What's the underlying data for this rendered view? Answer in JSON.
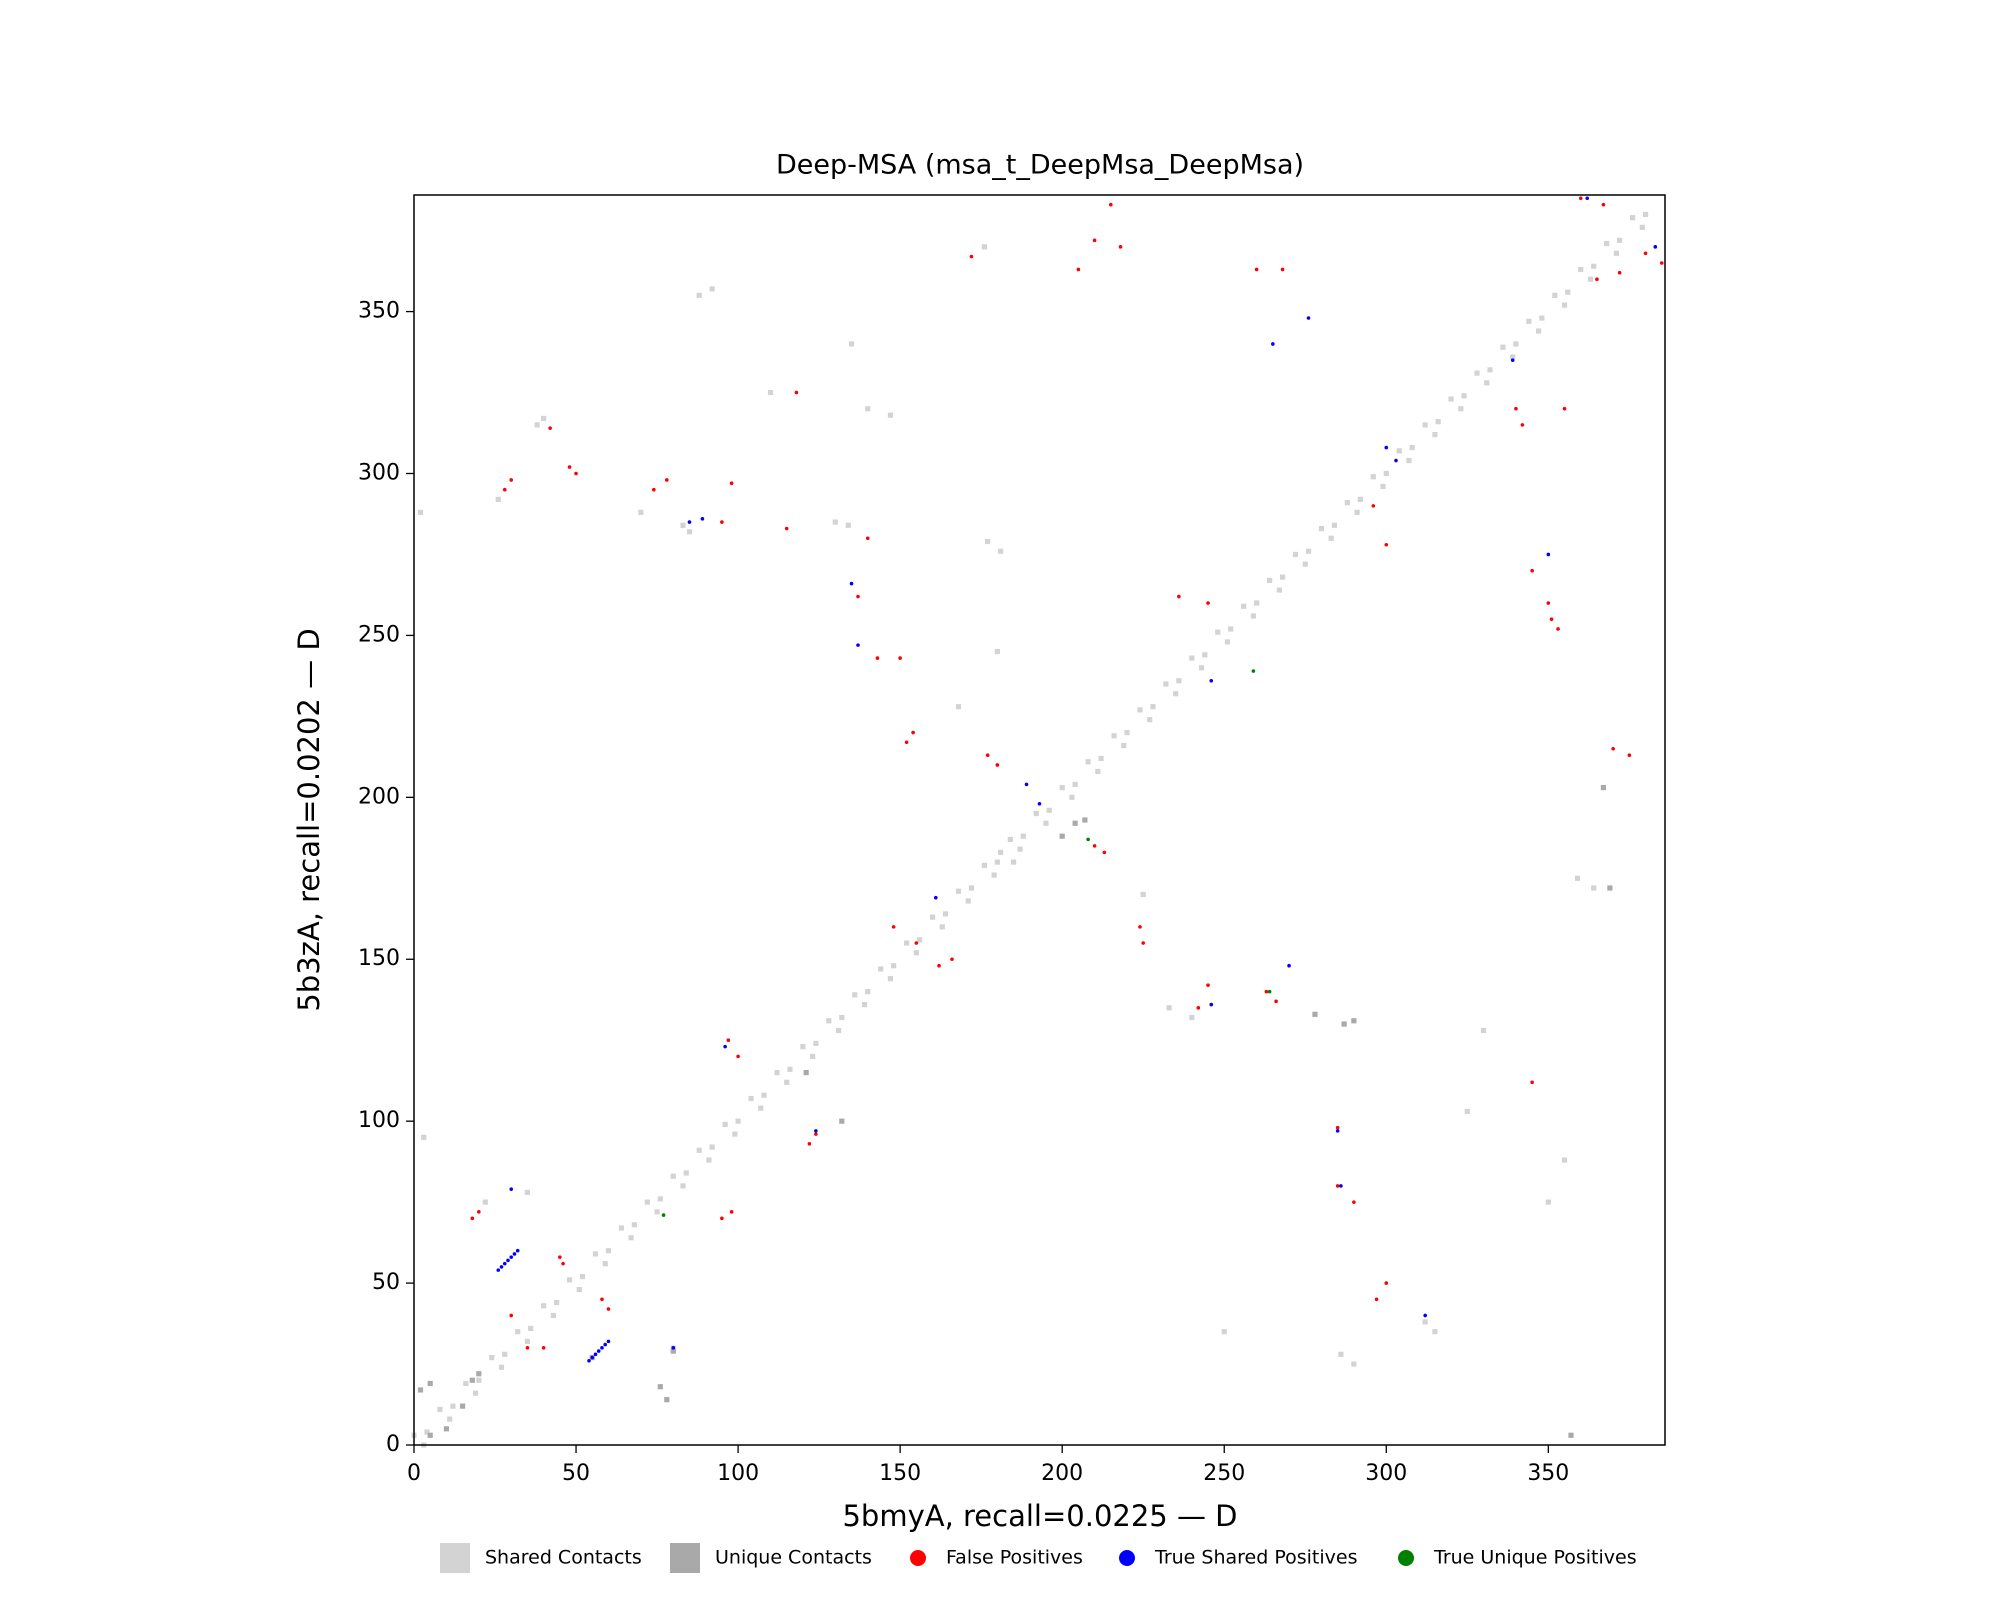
{
  "chart_data": {
    "type": "scatter",
    "title": "Deep-MSA (msa_t_DeepMsa_DeepMsa)",
    "x_label": "5bmyA, recall=0.0225 — D",
    "y_label": "5b3zA, recall=0.0202 — D",
    "xlim": [
      0,
      386
    ],
    "ylim": [
      0,
      386
    ],
    "xticks": [
      0,
      50,
      100,
      150,
      200,
      250,
      300,
      350
    ],
    "yticks": [
      0,
      50,
      100,
      150,
      200,
      250,
      300,
      350
    ],
    "legend": "bottom",
    "series": [
      {
        "name": "Shared Contacts",
        "color": "#d3d3d3",
        "marker": "square",
        "x": [
          0,
          8,
          16,
          24,
          32,
          40,
          48,
          56,
          64,
          72,
          80,
          88,
          96,
          104,
          112,
          120,
          128,
          136,
          144,
          152,
          160,
          168,
          176,
          184,
          192,
          200,
          208,
          216,
          224,
          232,
          240,
          248,
          256,
          264,
          272,
          280,
          288,
          296,
          304,
          312,
          320,
          328,
          336,
          344,
          352,
          360,
          368,
          376,
          3,
          11,
          19,
          27,
          35,
          43,
          51,
          59,
          67,
          75,
          83,
          91,
          99,
          107,
          115,
          123,
          131,
          139,
          147,
          155,
          163,
          171,
          179,
          187,
          195,
          203,
          211,
          219,
          227,
          235,
          243,
          251,
          259,
          267,
          275,
          283,
          291,
          299,
          307,
          315,
          323,
          331,
          339,
          347,
          355,
          363,
          371,
          379,
          4,
          12,
          20,
          28,
          36,
          44,
          52,
          60,
          68,
          76,
          84,
          92,
          100,
          108,
          116,
          124,
          132,
          140,
          148,
          156,
          164,
          172,
          180,
          188,
          196,
          204,
          212,
          220,
          228,
          236,
          244,
          252,
          260,
          268,
          276,
          284,
          292,
          300,
          308,
          316,
          324,
          332,
          340,
          348,
          356,
          364,
          372,
          380,
          40,
          38,
          85,
          83,
          134,
          130,
          177,
          181,
          147,
          140,
          88,
          92,
          135,
          110,
          70,
          26,
          2,
          180,
          168,
          176,
          325,
          330,
          355,
          350,
          364,
          359,
          312,
          315,
          290,
          286,
          250,
          80,
          35,
          22,
          3,
          181,
          185,
          225,
          240,
          233
        ],
        "y": [
          3,
          11,
          19,
          27,
          35,
          43,
          51,
          59,
          67,
          75,
          83,
          91,
          99,
          107,
          115,
          123,
          131,
          139,
          147,
          155,
          163,
          171,
          179,
          187,
          195,
          203,
          211,
          219,
          227,
          235,
          243,
          251,
          259,
          267,
          275,
          283,
          291,
          299,
          307,
          315,
          323,
          331,
          339,
          347,
          355,
          363,
          371,
          379,
          0,
          8,
          16,
          24,
          32,
          40,
          48,
          56,
          64,
          72,
          80,
          88,
          96,
          104,
          112,
          120,
          128,
          136,
          144,
          152,
          160,
          168,
          176,
          184,
          192,
          200,
          208,
          216,
          224,
          232,
          240,
          248,
          256,
          264,
          272,
          280,
          288,
          296,
          304,
          312,
          320,
          328,
          336,
          344,
          352,
          360,
          368,
          376,
          4,
          12,
          20,
          28,
          36,
          44,
          52,
          60,
          68,
          76,
          84,
          92,
          100,
          108,
          116,
          124,
          132,
          140,
          148,
          156,
          164,
          172,
          180,
          188,
          196,
          204,
          212,
          220,
          228,
          236,
          244,
          252,
          260,
          268,
          276,
          284,
          292,
          300,
          308,
          316,
          324,
          332,
          340,
          348,
          356,
          364,
          372,
          380,
          317,
          315,
          282,
          284,
          284,
          285,
          279,
          276,
          318,
          320,
          355,
          357,
          340,
          325,
          288,
          292,
          288,
          245,
          228,
          370,
          103,
          128,
          88,
          75,
          172,
          175,
          38,
          35,
          25,
          28,
          35,
          30,
          78,
          75,
          95,
          183,
          180,
          170,
          132,
          135
        ]
      },
      {
        "name": "Unique Contacts",
        "color": "#a9a9a9",
        "marker": "square",
        "x": [
          10,
          15,
          18,
          5,
          20,
          207,
          200,
          204,
          76,
          78,
          55,
          278,
          290,
          287,
          369,
          367,
          132,
          121,
          80,
          5,
          2,
          357
        ],
        "y": [
          5,
          12,
          20,
          3,
          22,
          193,
          188,
          192,
          18,
          14,
          27,
          133,
          131,
          130,
          172,
          203,
          100,
          115,
          29,
          19,
          17,
          3
        ]
      },
      {
        "name": "False Positives",
        "color": "#ff0000",
        "marker": "circle",
        "x": [
          42,
          48,
          50,
          28,
          30,
          74,
          78,
          95,
          98,
          115,
          140,
          137,
          143,
          150,
          154,
          152,
          172,
          205,
          210,
          218,
          215,
          180,
          177,
          210,
          213,
          155,
          148,
          162,
          166,
          20,
          18,
          30,
          35,
          40,
          45,
          46,
          58,
          60,
          95,
          98,
          100,
          97,
          124,
          122,
          285,
          290,
          285,
          300,
          297,
          260,
          268,
          340,
          342,
          345,
          353,
          351,
          370,
          375,
          365,
          372,
          385,
          380,
          360,
          367,
          300,
          296,
          263,
          266,
          245,
          242,
          224,
          225,
          118,
          355,
          345,
          350,
          245,
          236
        ],
        "y": [
          314,
          302,
          300,
          295,
          298,
          295,
          298,
          285,
          297,
          283,
          280,
          262,
          243,
          243,
          220,
          217,
          367,
          363,
          372,
          370,
          383,
          210,
          213,
          185,
          183,
          155,
          160,
          148,
          150,
          72,
          70,
          40,
          30,
          30,
          58,
          56,
          45,
          42,
          70,
          72,
          120,
          125,
          96,
          93,
          98,
          75,
          80,
          50,
          45,
          363,
          363,
          320,
          315,
          112,
          252,
          255,
          215,
          213,
          360,
          362,
          365,
          368,
          385,
          383,
          278,
          290,
          140,
          137,
          142,
          135,
          160,
          155,
          325,
          320,
          270,
          260,
          260,
          262
        ]
      },
      {
        "name": "True Shared Positives",
        "color": "#0000ff",
        "marker": "circle",
        "x": [
          26,
          27,
          28,
          29,
          30,
          31,
          32,
          54,
          55,
          56,
          57,
          58,
          59,
          60,
          30,
          80,
          89,
          85,
          135,
          137,
          161,
          246,
          270,
          265,
          276,
          285,
          286,
          312,
          300,
          303,
          350,
          339,
          362,
          383,
          193,
          246,
          96,
          124,
          189
        ],
        "y": [
          54,
          55,
          56,
          57,
          58,
          59,
          60,
          26,
          27,
          28,
          29,
          30,
          31,
          32,
          79,
          30,
          286,
          285,
          266,
          247,
          169,
          136,
          148,
          340,
          348,
          97,
          80,
          40,
          308,
          304,
          275,
          335,
          385,
          370,
          198,
          236,
          123,
          97,
          204
        ]
      },
      {
        "name": "True Unique Positives",
        "color": "#008000",
        "marker": "circle",
        "x": [
          208,
          259,
          264,
          77
        ],
        "y": [
          187,
          239,
          140,
          71
        ]
      }
    ]
  }
}
